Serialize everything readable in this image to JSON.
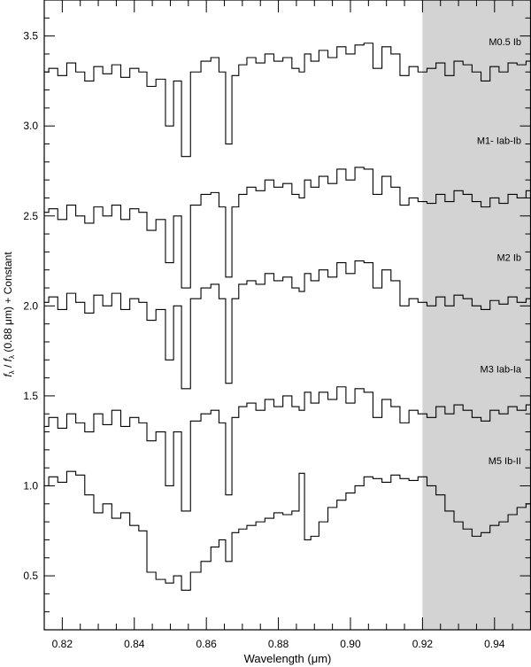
{
  "chart_data": {
    "type": "line",
    "xlabel": "Wavelength (μm)",
    "ylabel": {
      "f1": "f",
      "sub1": "λ",
      "slash": " / ",
      "f2": "f",
      "sub2": "λ",
      "rest": " (0.88 μm) + Constant"
    },
    "xlim": [
      0.815,
      0.95
    ],
    "ylim": [
      0.2,
      3.7
    ],
    "xticks": [
      "0.82",
      "0.84",
      "0.86",
      "0.88",
      "0.90",
      "0.92",
      "0.94"
    ],
    "yticks": [
      "0.5",
      "1.0",
      "1.5",
      "2.0",
      "2.5",
      "3.0",
      "3.5"
    ],
    "shaded_region": {
      "from": 0.92,
      "to": 0.95,
      "color": "#d3d3d3"
    },
    "line_color": "#000000",
    "x": [
      0.815,
      0.8175,
      0.82,
      0.8225,
      0.825,
      0.8275,
      0.83,
      0.8325,
      0.835,
      0.8375,
      0.84,
      0.8425,
      0.8445,
      0.8475,
      0.8498,
      0.852,
      0.8542,
      0.857,
      0.86,
      0.8625,
      0.8645,
      0.8662,
      0.868,
      0.87,
      0.8725,
      0.875,
      0.8775,
      0.88,
      0.8825,
      0.885,
      0.8865,
      0.888,
      0.89,
      0.8925,
      0.895,
      0.8975,
      0.9,
      0.9025,
      0.905,
      0.9075,
      0.91,
      0.9125,
      0.915,
      0.9175,
      0.92,
      0.9225,
      0.925,
      0.9275,
      0.93,
      0.9325,
      0.935,
      0.9375,
      0.94,
      0.9425,
      0.945,
      0.9475,
      0.95
    ],
    "series": [
      {
        "name": "M0.5 Ib",
        "values": [
          3.3,
          3.32,
          3.28,
          3.35,
          3.3,
          3.25,
          3.33,
          3.29,
          3.34,
          3.27,
          3.32,
          3.3,
          3.22,
          3.26,
          3.0,
          3.25,
          2.83,
          3.3,
          3.36,
          3.38,
          3.3,
          2.9,
          3.28,
          3.34,
          3.38,
          3.35,
          3.4,
          3.36,
          3.38,
          3.32,
          3.3,
          3.4,
          3.36,
          3.42,
          3.38,
          3.44,
          3.4,
          3.45,
          3.46,
          3.32,
          3.44,
          3.4,
          3.28,
          3.33,
          3.3,
          3.32,
          3.35,
          3.28,
          3.36,
          3.34,
          3.3,
          3.25,
          3.33,
          3.3,
          3.35,
          3.34,
          3.36
        ]
      },
      {
        "name": "M1- Iab-Ib",
        "values": [
          2.52,
          2.54,
          2.48,
          2.56,
          2.5,
          2.46,
          2.55,
          2.5,
          2.56,
          2.48,
          2.54,
          2.52,
          2.42,
          2.48,
          2.24,
          2.5,
          2.1,
          2.56,
          2.62,
          2.63,
          2.55,
          2.16,
          2.55,
          2.62,
          2.66,
          2.64,
          2.7,
          2.66,
          2.68,
          2.62,
          2.6,
          2.7,
          2.66,
          2.72,
          2.68,
          2.76,
          2.7,
          2.77,
          2.76,
          2.62,
          2.72,
          2.66,
          2.56,
          2.6,
          2.58,
          2.57,
          2.62,
          2.58,
          2.64,
          2.62,
          2.58,
          2.55,
          2.6,
          2.57,
          2.62,
          2.6,
          2.64
        ]
      },
      {
        "name": "M2 Ib",
        "values": [
          2.02,
          2.05,
          1.98,
          2.07,
          2.02,
          1.96,
          2.06,
          2.0,
          2.07,
          1.98,
          2.04,
          2.02,
          1.92,
          1.98,
          1.7,
          2.0,
          1.54,
          2.04,
          2.1,
          2.12,
          2.04,
          1.57,
          2.04,
          2.12,
          2.14,
          2.12,
          2.18,
          2.14,
          2.16,
          2.1,
          2.08,
          2.18,
          2.14,
          2.2,
          2.16,
          2.24,
          2.18,
          2.25,
          2.24,
          2.1,
          2.2,
          2.14,
          2.0,
          2.04,
          2.02,
          2.0,
          2.05,
          2.0,
          2.06,
          2.04,
          2.0,
          1.98,
          2.03,
          2.01,
          2.05,
          2.02,
          2.04
        ]
      },
      {
        "name": "M3 Iab-Ia",
        "values": [
          1.33,
          1.38,
          1.32,
          1.4,
          1.35,
          1.3,
          1.4,
          1.34,
          1.42,
          1.33,
          1.38,
          1.35,
          1.25,
          1.3,
          1.0,
          1.3,
          0.86,
          1.36,
          1.4,
          1.42,
          1.35,
          0.95,
          1.38,
          1.44,
          1.46,
          1.42,
          1.48,
          1.44,
          1.5,
          1.44,
          1.42,
          1.52,
          1.46,
          1.52,
          1.48,
          1.55,
          1.46,
          1.54,
          1.52,
          1.38,
          1.48,
          1.44,
          1.35,
          1.42,
          1.4,
          1.38,
          1.44,
          1.4,
          1.45,
          1.42,
          1.38,
          1.36,
          1.42,
          1.4,
          1.44,
          1.42,
          1.45
        ]
      },
      {
        "name": "M5 Ib-II",
        "values": [
          1.0,
          1.05,
          1.02,
          1.08,
          1.06,
          0.95,
          0.85,
          0.9,
          0.82,
          0.85,
          0.78,
          0.75,
          0.52,
          0.48,
          0.46,
          0.5,
          0.42,
          0.52,
          0.58,
          0.66,
          0.7,
          0.58,
          0.74,
          0.76,
          0.78,
          0.8,
          0.82,
          0.85,
          0.84,
          0.86,
          1.07,
          0.7,
          0.72,
          0.8,
          0.88,
          0.92,
          0.96,
          1.0,
          1.05,
          1.04,
          1.02,
          1.06,
          1.04,
          1.03,
          1.05,
          1.0,
          0.95,
          0.86,
          0.8,
          0.76,
          0.72,
          0.74,
          0.78,
          0.8,
          0.84,
          0.88,
          0.9
        ]
      }
    ],
    "series_label_values": [
      3.45,
      2.9,
      2.25,
      1.63,
      1.12
    ]
  }
}
